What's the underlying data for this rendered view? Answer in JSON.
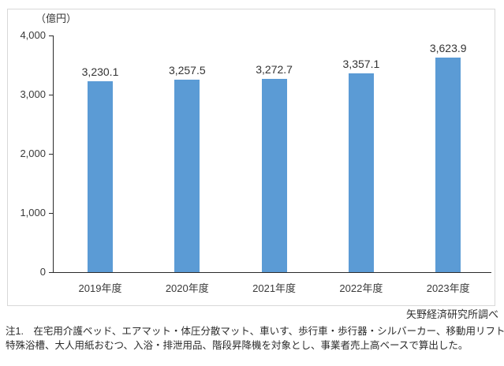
{
  "chart_data": {
    "type": "bar",
    "title": "",
    "unit_label": "（億円）",
    "categories": [
      "2019年度",
      "2020年度",
      "2021年度",
      "2022年度",
      "2023年度"
    ],
    "values": [
      3230.1,
      3257.5,
      3272.7,
      3357.1,
      3623.9
    ],
    "value_labels": [
      "3,230.1",
      "3,257.5",
      "3,272.7",
      "3,357.1",
      "3,623.9"
    ],
    "xlabel": "",
    "ylabel": "（億円）",
    "ylim": [
      0,
      4000
    ],
    "yticks": [
      0,
      1000,
      2000,
      3000,
      4000
    ],
    "ytick_labels": [
      "0",
      "1,000",
      "2,000",
      "3,000",
      "4,000"
    ],
    "bar_color": "#5B9BD5",
    "grid": false,
    "legend_position": "none"
  },
  "source": "矢野経済研究所調べ",
  "notes": {
    "line1": "注1.　在宅用介護ベッド、エアマット・体圧分散マット、車いす、歩行車・歩行器・シルバーカー、移動用リフト、",
    "line2": "特殊浴槽、大人用紙おむつ、入浴・排泄用品、階段昇降機を対象とし、事業者売上高ベースで算出した。"
  }
}
